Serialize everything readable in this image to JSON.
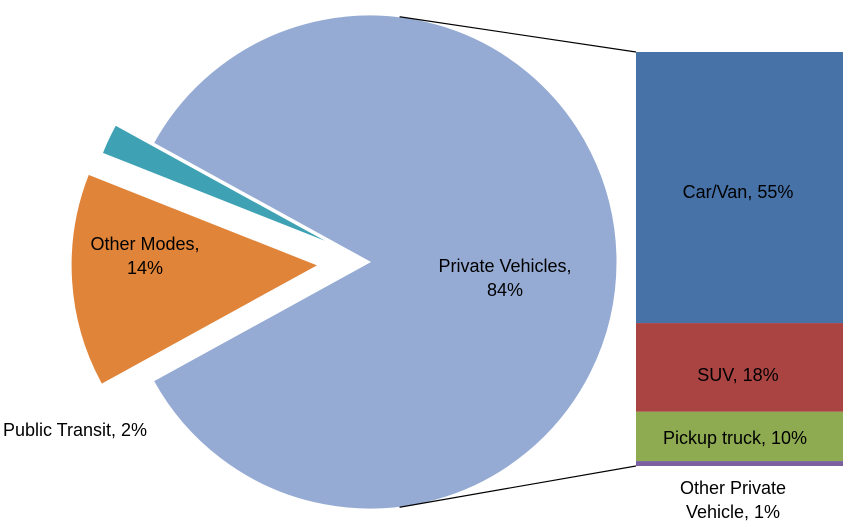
{
  "chart_data": {
    "type": "pie",
    "values": [
      84,
      14,
      2
    ],
    "value_labels": [
      "Private Vehicles, 84%",
      "Other Modes, 14%",
      "Public Transit, 2%"
    ],
    "colors": [
      "#95abd4",
      "#e0843a",
      "#3ea2b4"
    ],
    "bar": {
      "values": [
        55,
        18,
        10,
        1
      ],
      "value_labels": [
        "Car/Van, 55%",
        "SUV, 18%",
        "Pickup truck, 10%",
        "Other Private Vehicle, 1%"
      ],
      "colors": [
        "#4672a8",
        "#aa4443",
        "#8eab52",
        "#7b5fa0"
      ]
    }
  }
}
